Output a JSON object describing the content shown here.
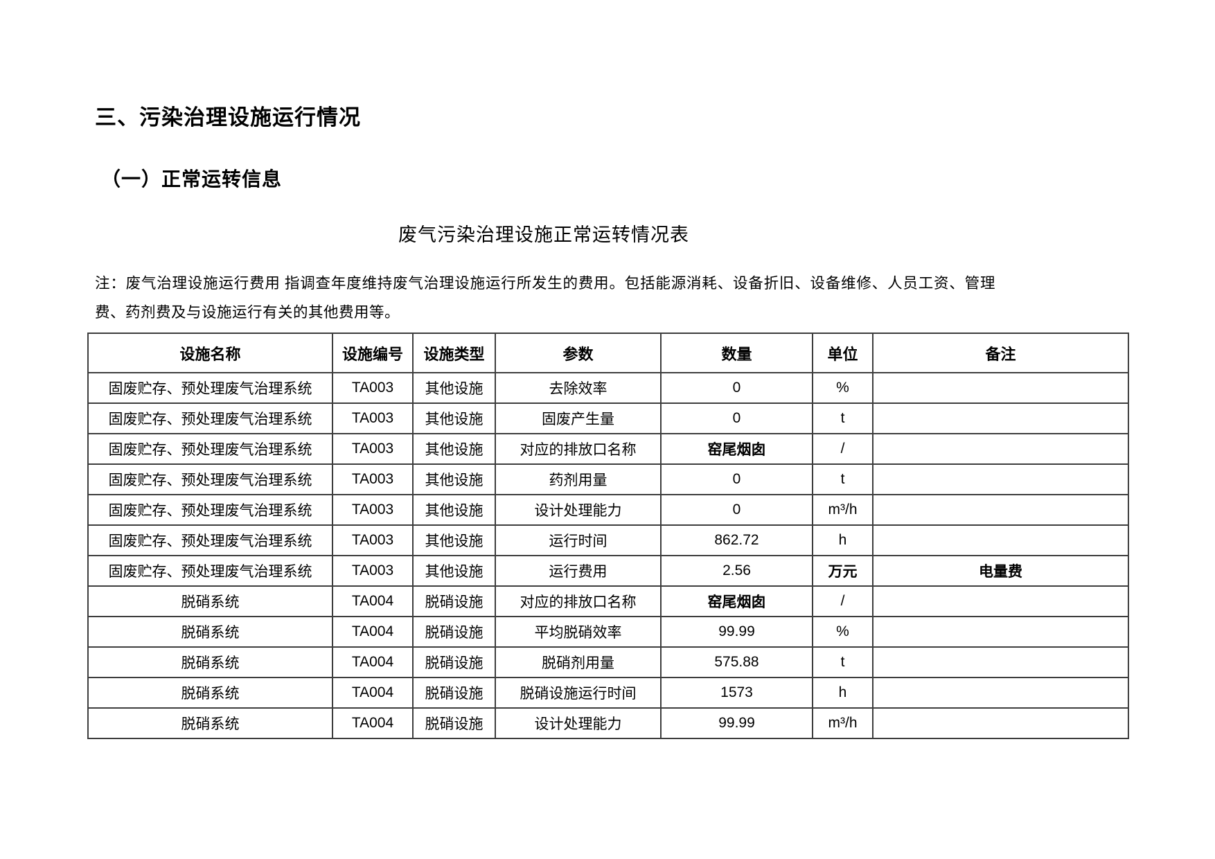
{
  "document": {
    "section_title": "三、污染治理设施运行情况",
    "subsection_title": "（一）正常运转信息",
    "table_title": "废气污染治理设施正常运转情况表",
    "note": "注：废气治理设施运行费用 指调查年度维持废气治理设施运行所发生的费用。包括能源消耗、设备折旧、设备维修、人员工资、管理费、药剂费及与设施运行有关的其他费用等。"
  },
  "table": {
    "headers": [
      "设施名称",
      "设施编号",
      "设施类型",
      "参数",
      "数量",
      "单位",
      "备注"
    ],
    "column_keys": [
      "facility-name",
      "facility-code",
      "facility-type",
      "parameter",
      "quantity",
      "unit",
      "remark"
    ],
    "rows": [
      [
        "固废贮存、预处理废气治理系统",
        "TA003",
        "其他设施",
        "去除效率",
        "0",
        "%",
        ""
      ],
      [
        "固废贮存、预处理废气治理系统",
        "TA003",
        "其他设施",
        "固废产生量",
        "0",
        "t",
        ""
      ],
      [
        "固废贮存、预处理废气治理系统",
        "TA003",
        "其他设施",
        "对应的排放口名称",
        "窑尾烟囱",
        "/",
        ""
      ],
      [
        "固废贮存、预处理废气治理系统",
        "TA003",
        "其他设施",
        "药剂用量",
        "0",
        "t",
        ""
      ],
      [
        "固废贮存、预处理废气治理系统",
        "TA003",
        "其他设施",
        "设计处理能力",
        "0",
        "m³/h",
        ""
      ],
      [
        "固废贮存、预处理废气治理系统",
        "TA003",
        "其他设施",
        "运行时间",
        "862.72",
        "h",
        ""
      ],
      [
        "固废贮存、预处理废气治理系统",
        "TA003",
        "其他设施",
        "运行费用",
        "2.56",
        "万元",
        "电量费"
      ],
      [
        "脱硝系统",
        "TA004",
        "脱硝设施",
        "对应的排放口名称",
        "窑尾烟囱",
        "/",
        ""
      ],
      [
        "脱硝系统",
        "TA004",
        "脱硝设施",
        "平均脱硝效率",
        "99.99",
        "%",
        ""
      ],
      [
        "脱硝系统",
        "TA004",
        "脱硝设施",
        "脱硝剂用量",
        "575.88",
        "t",
        ""
      ],
      [
        "脱硝系统",
        "TA004",
        "脱硝设施",
        "脱硝设施运行时间",
        "1573",
        "h",
        ""
      ],
      [
        "脱硝系统",
        "TA004",
        "脱硝设施",
        "设计处理能力",
        "99.99",
        "m³/h",
        ""
      ]
    ]
  },
  "colors": {
    "text": "#000000",
    "border": "#3d3d3d",
    "background": "#ffffff"
  }
}
